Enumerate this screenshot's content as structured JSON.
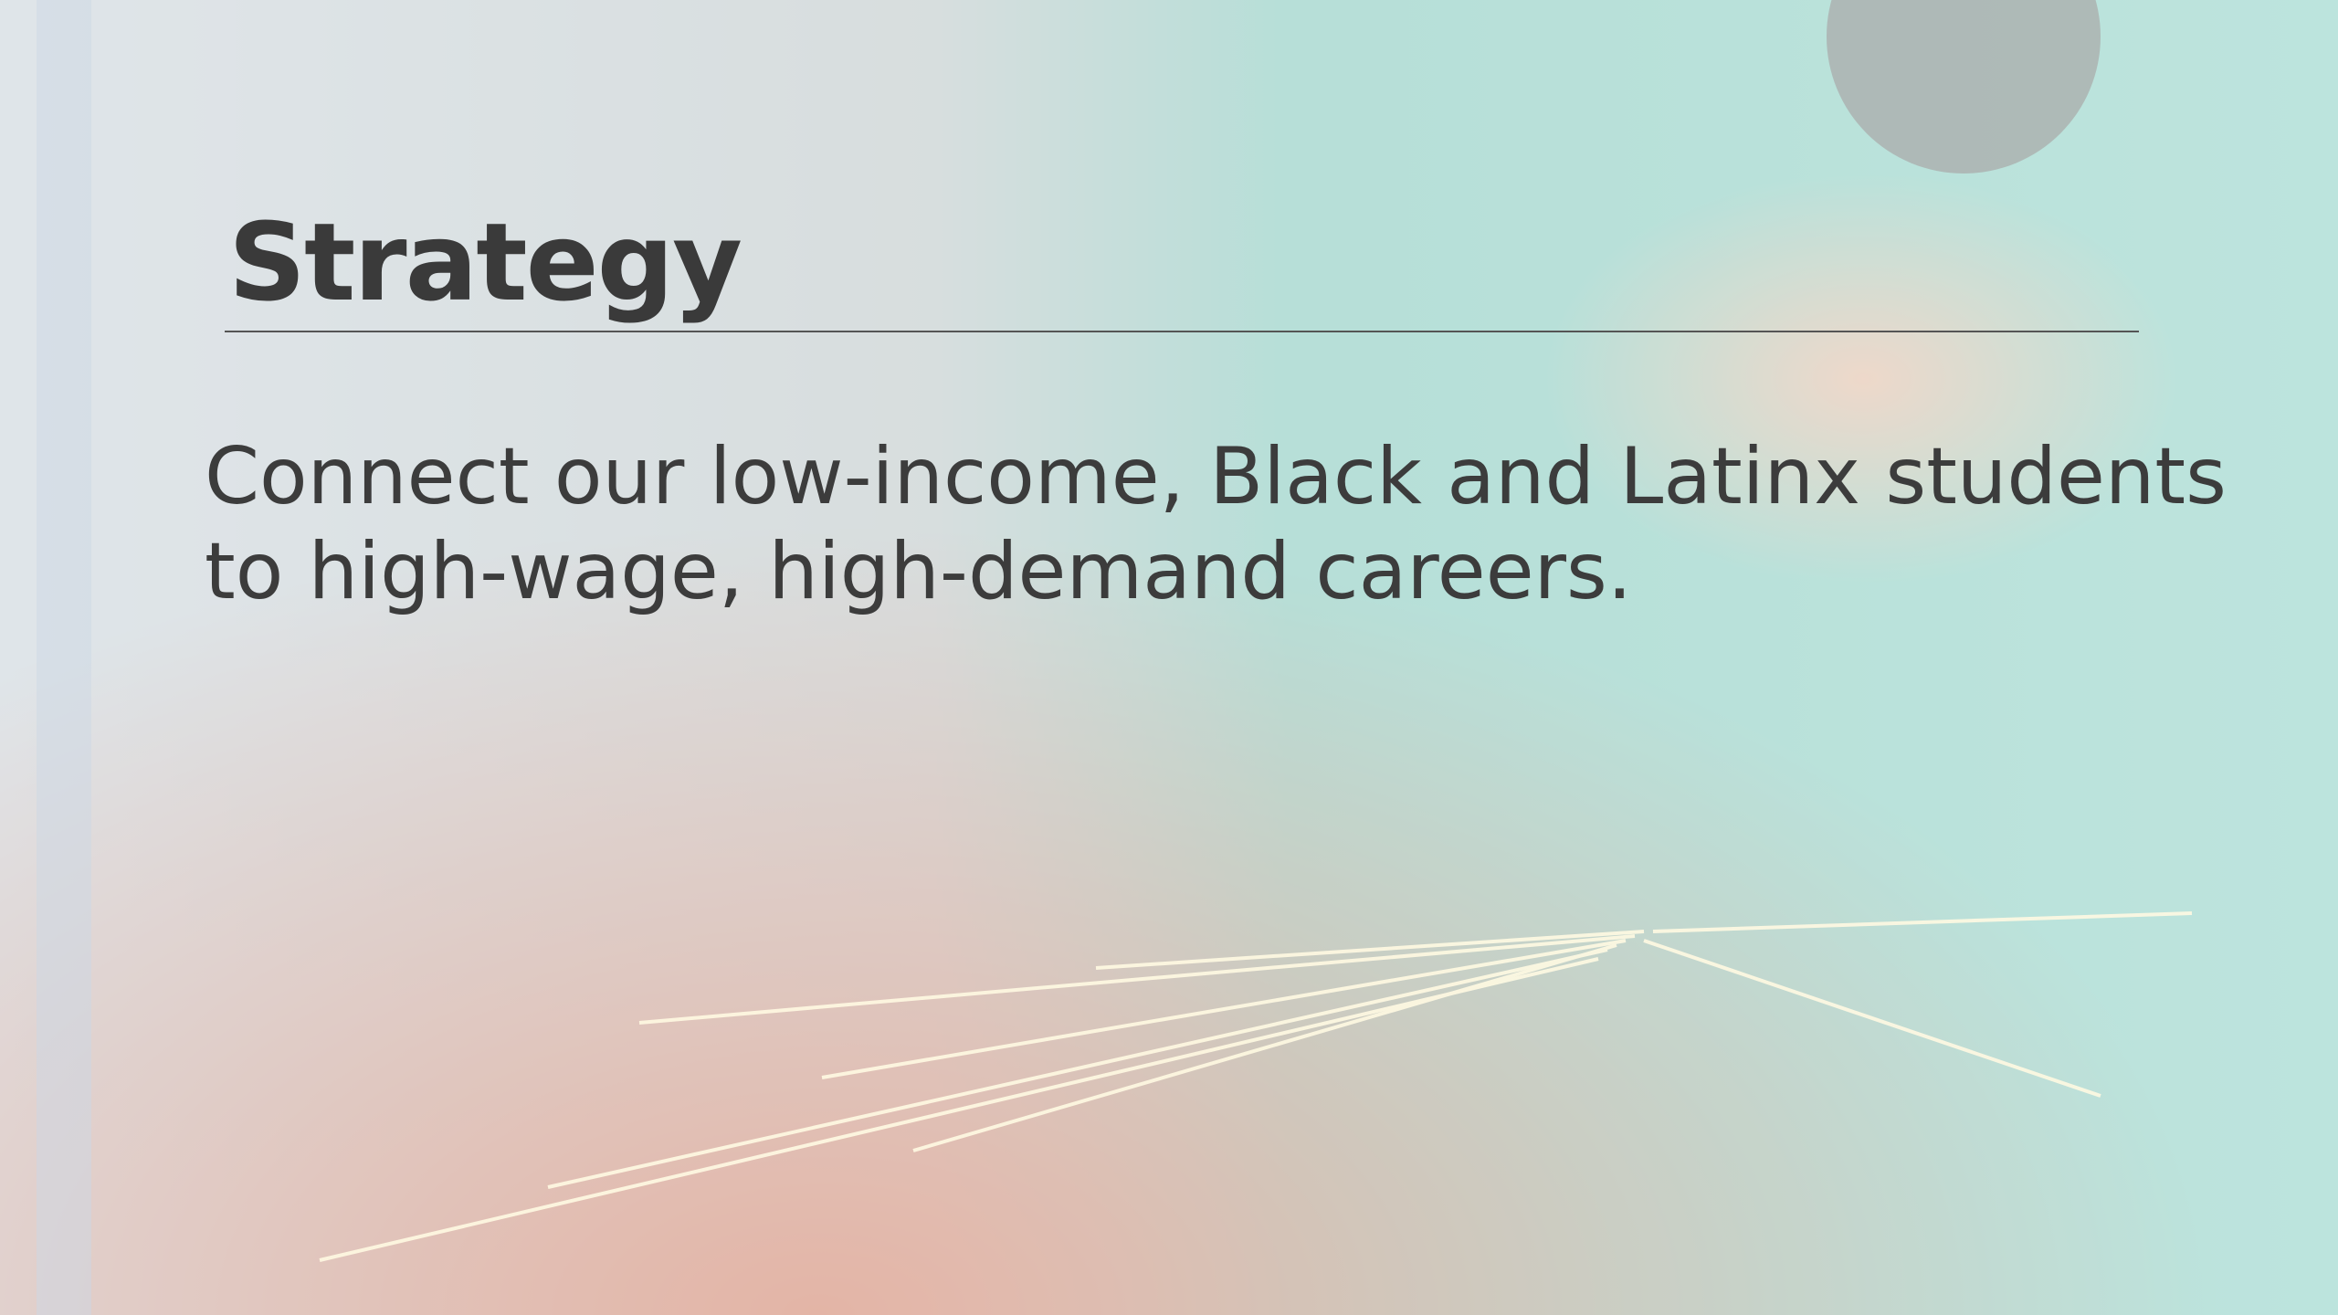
{
  "slide": {
    "title": "Strategy",
    "body": [
      "Connect our low-income, Black and Latinx students",
      "to high-wage, high-demand careers."
    ]
  }
}
